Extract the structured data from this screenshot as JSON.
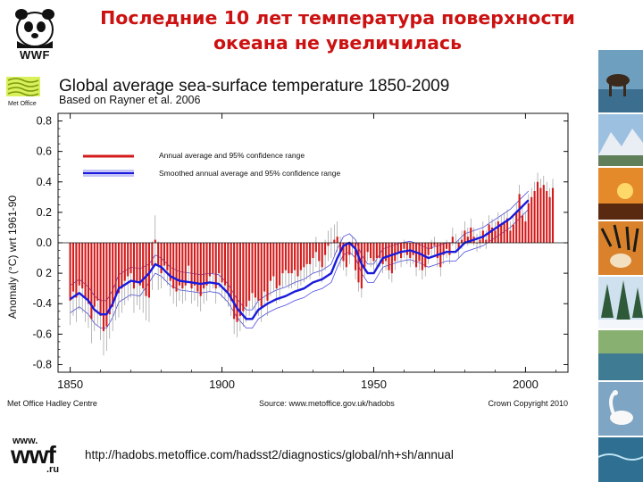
{
  "slide": {
    "title_line1": "Последние 10 лет температура поверхности",
    "title_line2": "океана не увеличилась",
    "footer_url": "http://hadobs.metoffice.com/hadsst2/diagnostics/global/nh+sh/annual"
  },
  "logos": {
    "top_text": "WWF",
    "bottom_www": "www.",
    "bottom_wwf": "wwf",
    "bottom_ru": ".ru",
    "metoffice_text": "Met Office"
  },
  "colors": {
    "title": "#cc1111",
    "annual_bar": "#d31b1b",
    "smoothed_line": "#1a1adc",
    "smoothed_band": "#4a4ae0",
    "error_bar": "#8a8a8a"
  },
  "chart_data": {
    "type": "bar",
    "title": "Global average sea-surface temperature 1850-2009",
    "subtitle": "Based on Rayner et al. 2006",
    "xlabel": "",
    "ylabel": "Anomaly (°C) wrt 1961-90",
    "xlim": [
      1846,
      2014
    ],
    "ylim": [
      -0.85,
      0.85
    ],
    "x_ticks": [
      "1850",
      "1900",
      "1950",
      "2000"
    ],
    "y_ticks": [
      "0.8",
      "0.6",
      "0.4",
      "0.2",
      "0.0",
      "0 2",
      "-0.4",
      "-0.6",
      "-0.8"
    ],
    "legend": {
      "placement": "top-left",
      "entries": [
        "Annual average and 95% confidence range",
        "Smoothed annual average and 95% confidence range"
      ]
    },
    "footer_left": "Met Office Hadley Centre",
    "footer_center": "Source: www.metoffice.gov.uk/hadobs",
    "footer_right": "Crown Copyright 2010",
    "annual": {
      "name": "Annual average",
      "x_start": 1850,
      "values": [
        -0.38,
        -0.32,
        -0.36,
        -0.28,
        -0.3,
        -0.36,
        -0.4,
        -0.5,
        -0.42,
        -0.38,
        -0.48,
        -0.58,
        -0.55,
        -0.47,
        -0.42,
        -0.35,
        -0.33,
        -0.3,
        -0.25,
        -0.22,
        -0.2,
        -0.3,
        -0.25,
        -0.28,
        -0.3,
        -0.35,
        -0.36,
        -0.15,
        0.02,
        -0.15,
        -0.2,
        -0.15,
        -0.18,
        -0.25,
        -0.3,
        -0.32,
        -0.28,
        -0.3,
        -0.28,
        -0.15,
        -0.3,
        -0.28,
        -0.32,
        -0.35,
        -0.3,
        -0.28,
        -0.22,
        -0.2,
        -0.3,
        -0.2,
        -0.26,
        -0.28,
        -0.32,
        -0.38,
        -0.5,
        -0.52,
        -0.48,
        -0.45,
        -0.42,
        -0.38,
        -0.33,
        -0.36,
        -0.38,
        -0.42,
        -0.32,
        -0.38,
        -0.25,
        -0.22,
        -0.3,
        -0.28,
        -0.2,
        -0.18,
        -0.2,
        -0.2,
        -0.18,
        -0.22,
        -0.18,
        -0.16,
        -0.14,
        -0.14,
        -0.1,
        -0.06,
        -0.12,
        -0.16,
        -0.08,
        -0.02,
        0.0,
        0.02,
        0.04,
        -0.06,
        -0.12,
        -0.16,
        -0.08,
        -0.02,
        -0.18,
        -0.26,
        -0.3,
        -0.16,
        -0.06,
        -0.1,
        -0.12,
        -0.1,
        -0.1,
        -0.14,
        -0.12,
        -0.18,
        -0.2,
        -0.12,
        -0.06,
        -0.1,
        -0.04,
        -0.08,
        -0.1,
        -0.08,
        -0.16,
        -0.12,
        -0.18,
        -0.16,
        -0.08,
        -0.04,
        -0.02,
        -0.1,
        -0.16,
        -0.08,
        -0.04,
        -0.08,
        0.04,
        0.0,
        -0.04,
        0.02,
        0.08,
        0.04,
        0.1,
        0.04,
        0.0,
        0.02,
        0.08,
        0.02,
        0.12,
        0.1,
        0.08,
        0.14,
        0.12,
        0.14,
        0.16,
        0.08,
        0.12,
        0.2,
        0.32,
        0.18,
        0.14,
        0.26,
        0.3,
        0.34,
        0.4,
        0.36,
        0.38,
        0.34,
        0.3,
        0.36
      ],
      "conf_halfwidth": 0.1
    },
    "smoothed": {
      "name": "Smoothed annual average",
      "x": [
        1850,
        1853,
        1856,
        1858,
        1860,
        1862,
        1864,
        1866,
        1870,
        1873,
        1876,
        1878,
        1880,
        1883,
        1886,
        1890,
        1893,
        1896,
        1899,
        1902,
        1905,
        1908,
        1910,
        1912,
        1915,
        1918,
        1921,
        1924,
        1927,
        1930,
        1933,
        1936,
        1938,
        1940,
        1942,
        1944,
        1946,
        1948,
        1950,
        1953,
        1956,
        1959,
        1962,
        1965,
        1968,
        1971,
        1974,
        1977,
        1980,
        1983,
        1986,
        1989,
        1992,
        1995,
        1998,
        2001
      ],
      "y": [
        -0.37,
        -0.33,
        -0.38,
        -0.44,
        -0.47,
        -0.47,
        -0.4,
        -0.3,
        -0.25,
        -0.26,
        -0.2,
        -0.14,
        -0.16,
        -0.22,
        -0.25,
        -0.26,
        -0.27,
        -0.26,
        -0.27,
        -0.33,
        -0.43,
        -0.5,
        -0.5,
        -0.44,
        -0.4,
        -0.37,
        -0.35,
        -0.32,
        -0.3,
        -0.26,
        -0.24,
        -0.2,
        -0.1,
        -0.02,
        0.0,
        -0.04,
        -0.14,
        -0.2,
        -0.2,
        -0.1,
        -0.08,
        -0.06,
        -0.05,
        -0.07,
        -0.1,
        -0.08,
        -0.06,
        -0.06,
        0.0,
        0.02,
        0.04,
        0.08,
        0.12,
        0.16,
        0.22,
        0.28
      ],
      "band_halfwidth": 0.06
    }
  }
}
